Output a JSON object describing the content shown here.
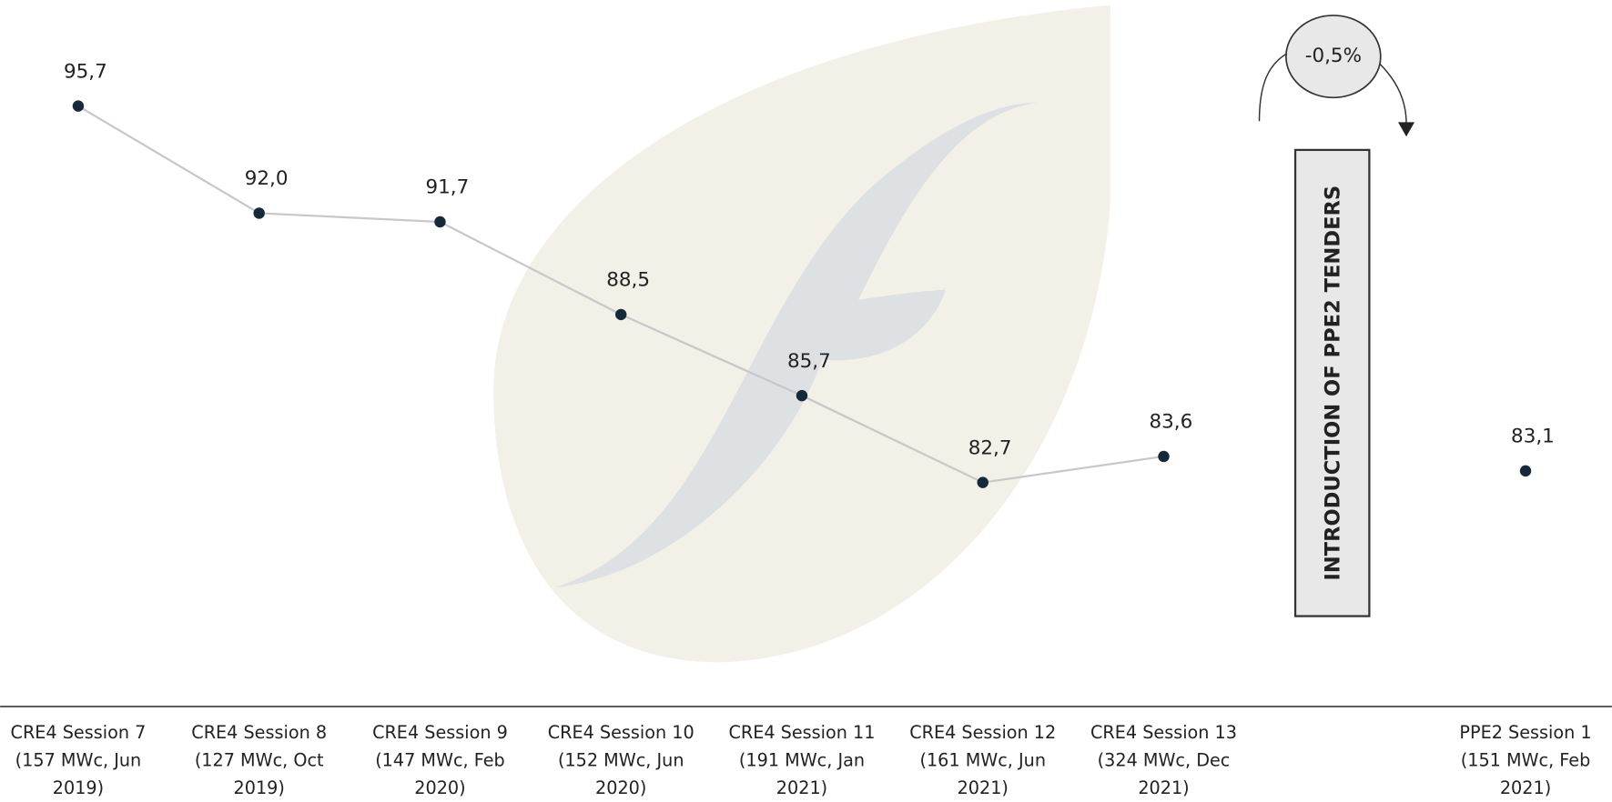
{
  "chart_data": {
    "type": "line",
    "categories": [
      "CRE4 Session 7 (157 MWc, Jun 2019)",
      "CRE4 Session 8 (127 MWc, Oct 2019)",
      "CRE4 Session 9 (147 MWc, Feb 2020)",
      "CRE4 Session 10 (152 MWc, Jun 2020)",
      "CRE4 Session 11 (191 MWc, Jan 2021)",
      "CRE4 Session 12 (161 MWc, Jun 2021)",
      "CRE4 Session 13 (324 MWc, Dec 2021)",
      null,
      "PPE2 Session 1 (151 MWc, Feb 2021)"
    ],
    "values": [
      95.7,
      92.0,
      91.7,
      88.5,
      85.7,
      82.7,
      83.6,
      null,
      83.1
    ],
    "value_labels": [
      "95,7",
      "92,0",
      "91,7",
      "88,5",
      "85,7",
      "82,7",
      "83,6",
      null,
      "83,1"
    ],
    "color": "#c8c8c8",
    "marker_color": "#15293a",
    "ylim": [
      75,
      100
    ],
    "annotations": [
      "-0,5%",
      "INTRODUCTION OF PPE2 TENDERS"
    ]
  }
}
